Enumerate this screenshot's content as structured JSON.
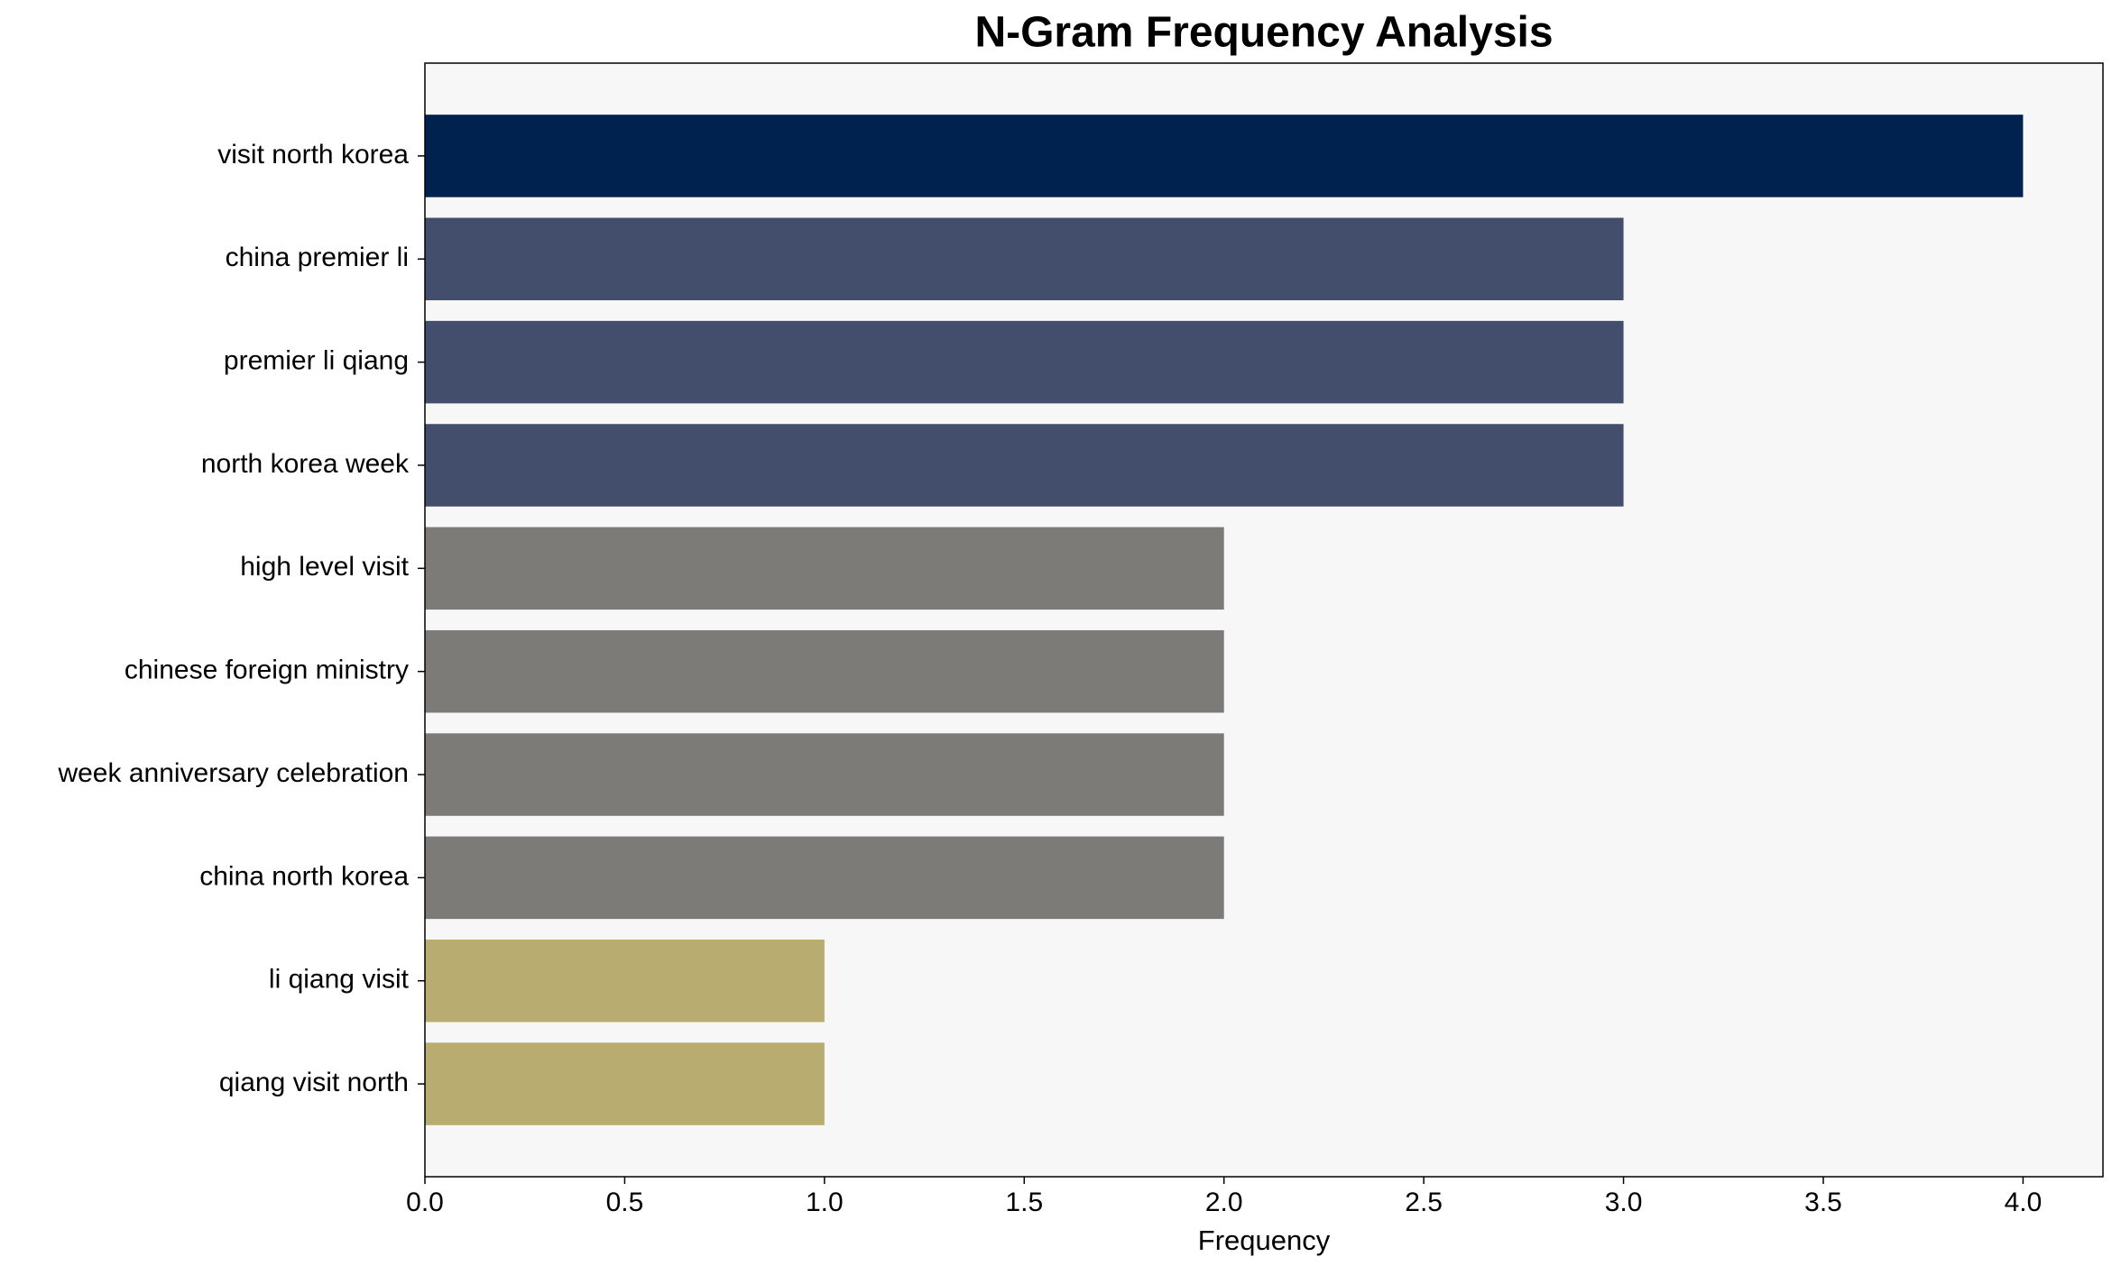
{
  "chart_data": {
    "type": "barh",
    "title": "N-Gram Frequency Analysis",
    "x_label": "Frequency",
    "categories": [
      "visit north korea",
      "china premier li",
      "premier li qiang",
      "north korea week",
      "high level visit",
      "chinese foreign ministry",
      "week anniversary celebration",
      "china north korea",
      "li qiang visit",
      "qiang visit north"
    ],
    "values": [
      4,
      3,
      3,
      3,
      2,
      2,
      2,
      2,
      1,
      1
    ],
    "colors": [
      "#00224e",
      "#434e6c",
      "#434e6c",
      "#434e6c",
      "#7c7b78",
      "#7c7b78",
      "#7c7b78",
      "#7c7b78",
      "#b9ac70",
      "#b9ac70"
    ],
    "xlim": [
      0,
      4.2
    ],
    "xticks": [
      {
        "value": 0,
        "label": "0.0"
      },
      0.5,
      {
        "value": 1,
        "label": "1.0"
      },
      1.5,
      {
        "value": 2,
        "label": "2.0"
      },
      2.5,
      {
        "value": 3,
        "label": "3.0"
      },
      3.5,
      {
        "value": 4,
        "label": "4.0"
      }
    ],
    "grid": false
  }
}
